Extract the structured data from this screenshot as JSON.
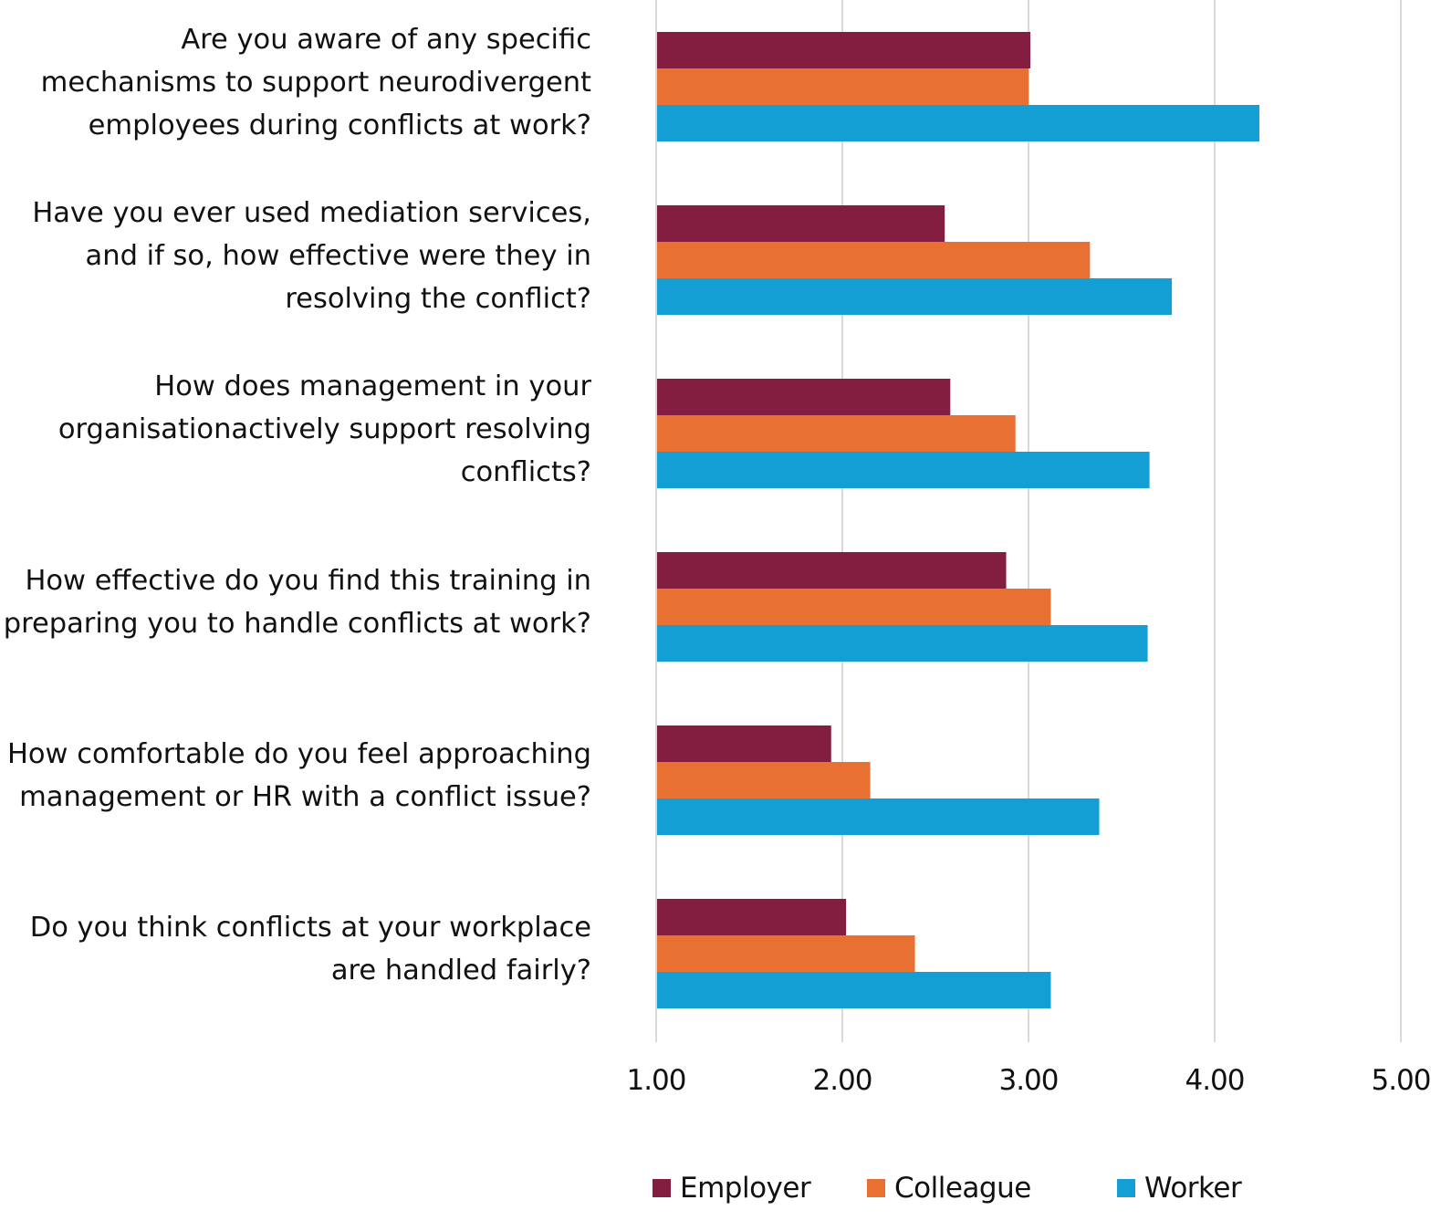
{
  "chart_data": {
    "type": "bar",
    "orientation": "horizontal",
    "categories": [
      "Are you aware of any specific mechanisms to support neurodivergent employees during conflicts at work?",
      "Have you ever used mediation services, and if so, how effective were they in resolving the conflict?",
      "How does management in your organisationactively support resolving conflicts?",
      "How effective do you find this training in preparing you to handle conflicts at work?",
      "How comfortable do you feel approaching management or HR with a conflict issue?",
      "Do you think conflicts at your workplace are handled fairly?"
    ],
    "series": [
      {
        "name": "Employer",
        "color": "#841E41",
        "values": [
          3.01,
          2.55,
          2.58,
          2.88,
          1.94,
          2.02
        ]
      },
      {
        "name": "Colleague",
        "color": "#E87033",
        "values": [
          3.0,
          3.33,
          2.93,
          3.12,
          2.15,
          2.39
        ]
      },
      {
        "name": "Worker",
        "color": "#139FD4",
        "values": [
          4.24,
          3.77,
          3.65,
          3.64,
          3.38,
          3.12
        ]
      }
    ],
    "xlim": [
      1,
      5
    ],
    "ticks": [
      "1.00",
      "2.00",
      "3.00",
      "4.00",
      "5.00"
    ],
    "grid": "vertical",
    "legend": "bottom",
    "title": "",
    "xlabel": "",
    "ylabel": ""
  }
}
